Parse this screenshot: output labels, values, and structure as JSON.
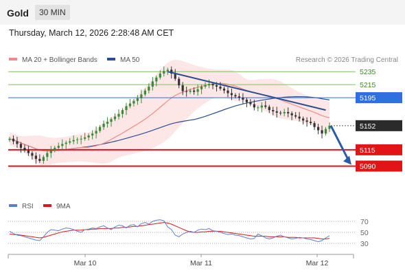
{
  "header": {
    "symbol": "Gold",
    "timeframe": "30 MIN"
  },
  "datetime": "Thursday, March 12, 2026 2:28:48 AM CET",
  "legend": {
    "items": [
      {
        "label": "MA 20 + Bollinger Bands",
        "color": "#f08a8a"
      },
      {
        "label": "MA 50",
        "color": "#2a4d8f"
      }
    ],
    "credit": "Research © 2026 Trading Central"
  },
  "colors": {
    "up": "#3a8a3a",
    "down": "#333333",
    "ma20": "#f08a8a",
    "ma50": "#2a4d8f",
    "band": "#fde2e2",
    "resistance_green": "#7dbf5e",
    "pivot": "#2f6fe0",
    "support": "#e11515",
    "last": "#2b2b2b",
    "arrow": "#2a5aa8",
    "rsi": "#5a7fd0",
    "rsi_ma": "#e11515"
  },
  "chart_data": [
    {
      "type": "candlestick",
      "title": "Gold",
      "timeframe": "30 MIN",
      "x_tick_labels": [
        "Mar 10",
        "Mar 11",
        "Mar 12"
      ],
      "y_range": [
        5060,
        5250
      ],
      "indicators": [
        "MA 20 + Bollinger Bands",
        "MA 50"
      ],
      "levels": [
        {
          "value": 5235,
          "label": "5235",
          "kind": "resistance",
          "color": "#7dbf5e"
        },
        {
          "value": 5215,
          "label": "5215",
          "kind": "resistance",
          "color": "#7dbf5e"
        },
        {
          "value": 5195,
          "label": "5195",
          "kind": "pivot",
          "color": "#2f6fe0"
        },
        {
          "value": 5152,
          "label": "5152",
          "kind": "last",
          "color": "#2b2b2b"
        },
        {
          "value": 5115,
          "label": "5115",
          "kind": "support",
          "color": "#e11515"
        },
        {
          "value": 5090,
          "label": "5090",
          "kind": "support",
          "color": "#e11515"
        }
      ],
      "trendline": {
        "from": 5235,
        "to": 5176
      },
      "forecast_arrow": {
        "from": 5152,
        "to": 5092
      },
      "close_series": [
        5132,
        5128,
        5124,
        5118,
        5114,
        5110,
        5106,
        5101,
        5098,
        5104,
        5110,
        5114,
        5118,
        5121,
        5124,
        5126,
        5128,
        5130,
        5131,
        5132,
        5134,
        5137,
        5140,
        5144,
        5150,
        5155,
        5158,
        5162,
        5166,
        5170,
        5176,
        5182,
        5186,
        5190,
        5194,
        5200,
        5206,
        5212,
        5220,
        5226,
        5232,
        5236,
        5238,
        5232,
        5224,
        5214,
        5205,
        5204,
        5206,
        5204,
        5208,
        5212,
        5214,
        5216,
        5214,
        5212,
        5209,
        5206,
        5202,
        5199,
        5197,
        5195,
        5192,
        5188,
        5185,
        5180,
        5180,
        5183,
        5181,
        5176,
        5174,
        5172,
        5171,
        5173,
        5171,
        5168,
        5166,
        5163,
        5160,
        5158,
        5156,
        5150,
        5145,
        5140,
        5147,
        5152
      ]
    },
    {
      "type": "line",
      "title": "RSI",
      "series": [
        {
          "name": "RSI"
        },
        {
          "name": "9MA"
        }
      ],
      "y_ticks": [
        70,
        50,
        30
      ],
      "rsi_values": [
        52,
        48,
        45,
        44,
        42,
        40,
        38,
        36,
        35,
        42,
        50,
        55,
        54,
        53,
        56,
        58,
        57,
        55,
        52,
        50,
        55,
        56,
        58,
        57,
        60,
        62,
        58,
        55,
        60,
        63,
        62,
        58,
        63,
        64,
        60,
        66,
        68,
        65,
        70,
        72,
        73,
        71,
        60,
        55,
        45,
        42,
        47,
        50,
        52,
        50,
        54,
        56,
        55,
        57,
        53,
        52,
        50,
        48,
        46,
        47,
        45,
        44,
        42,
        40,
        38,
        39,
        47,
        44,
        40,
        38,
        40,
        43,
        45,
        42,
        40,
        38,
        39,
        41,
        40,
        38,
        37,
        35,
        33,
        35,
        40,
        44
      ],
      "rsi_ma_values": [
        47,
        46,
        46,
        45,
        44,
        43,
        42,
        41,
        40,
        41,
        43,
        45,
        47,
        49,
        51,
        52,
        53,
        54,
        54,
        54,
        55,
        55,
        56,
        56,
        57,
        57,
        57,
        57,
        58,
        58,
        59,
        59,
        60,
        61,
        61,
        62,
        63,
        64,
        65,
        66,
        67,
        68,
        67,
        65,
        62,
        59,
        56,
        53,
        51,
        50,
        50,
        51,
        51,
        52,
        52,
        52,
        52,
        51,
        50,
        49,
        48,
        47,
        46,
        45,
        44,
        43,
        43,
        43,
        43,
        42,
        42,
        42,
        42,
        42,
        41,
        41,
        41,
        40,
        40,
        40,
        40,
        40,
        39,
        38,
        38,
        39
      ]
    }
  ],
  "rsi_legend": {
    "rsi_label": "RSI",
    "ma_label": "9MA"
  }
}
